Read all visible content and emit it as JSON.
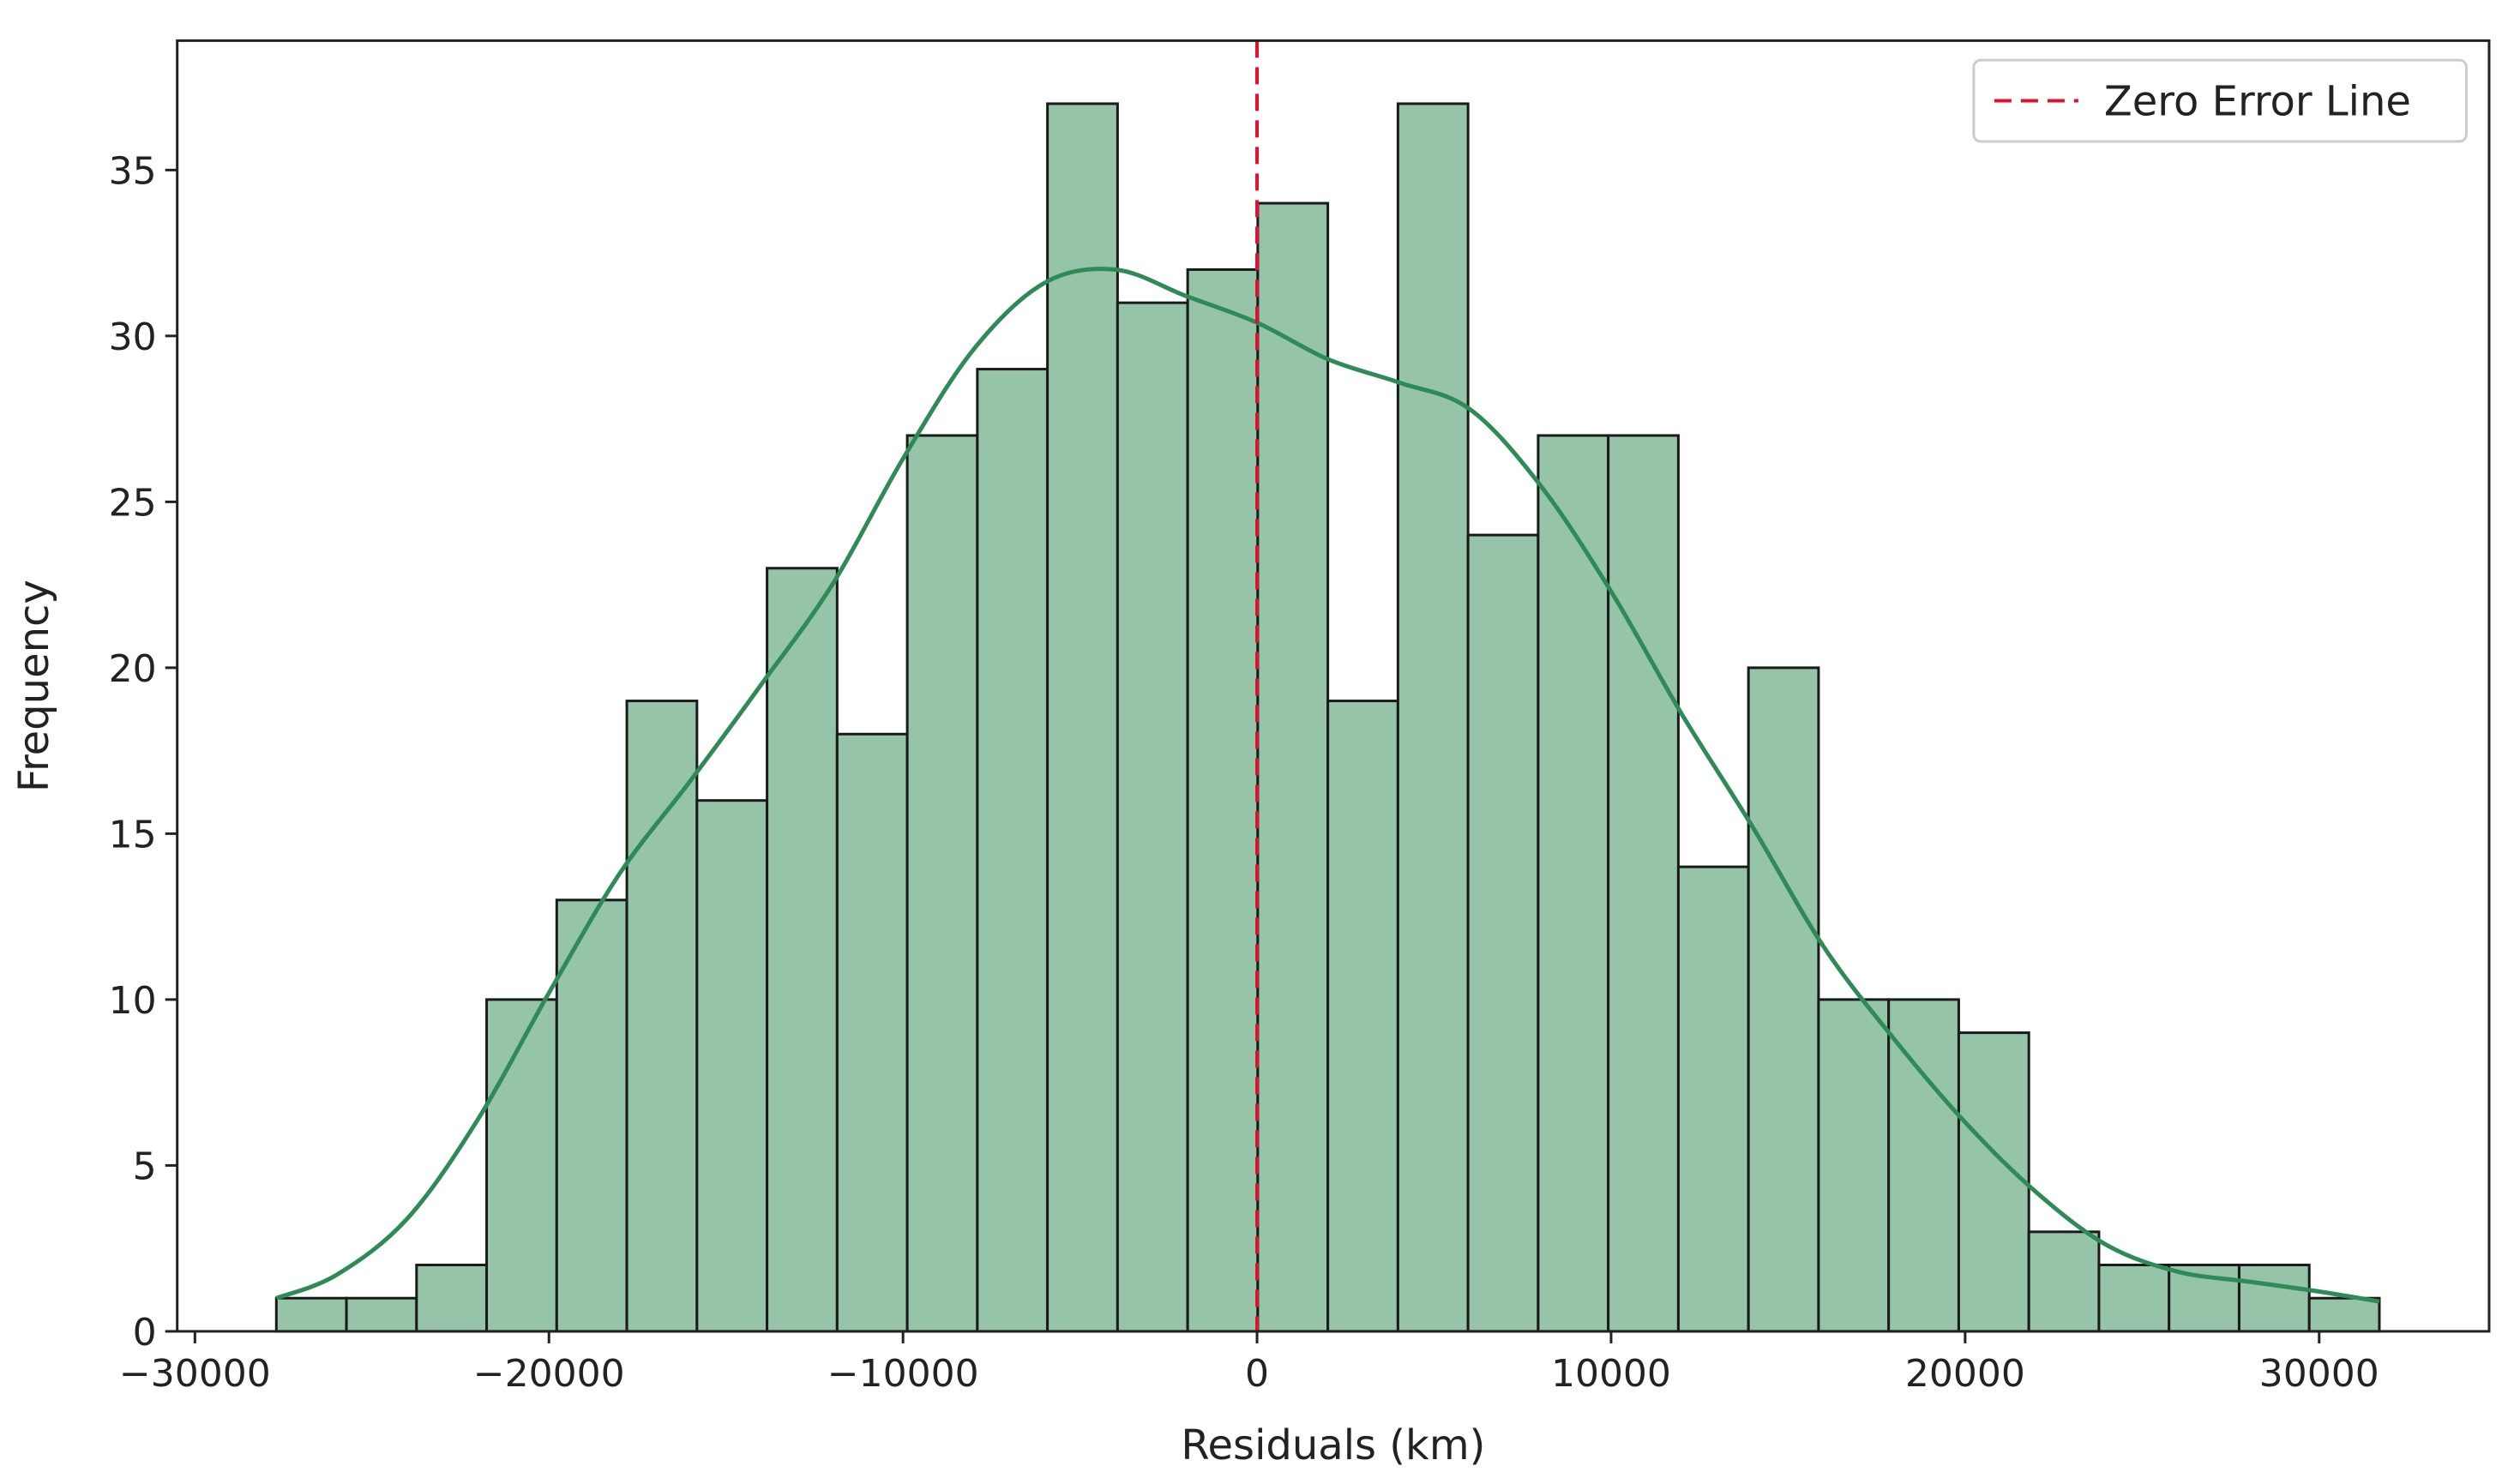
{
  "chart_data": {
    "type": "bar",
    "subtype": "histogram-with-kde",
    "title": "",
    "xlabel": "Residuals (km)",
    "ylabel": "Frequency",
    "xlim": [
      -30500,
      34800
    ],
    "ylim": [
      0,
      38.9
    ],
    "x_ticks": [
      -30000,
      -20000,
      -10000,
      0,
      10000,
      20000,
      30000
    ],
    "x_tick_labels": [
      "−30000",
      "−20000",
      "−10000",
      "0",
      "10000",
      "20000",
      "30000"
    ],
    "y_ticks": [
      0,
      5,
      10,
      15,
      20,
      25,
      30,
      35
    ],
    "y_tick_labels": [
      "0",
      "5",
      "10",
      "15",
      "20",
      "25",
      "30",
      "35"
    ],
    "bin_start": -27700,
    "bin_width": 1980,
    "bin_counts": [
      1,
      1,
      2,
      10,
      13,
      19,
      16,
      23,
      18,
      27,
      29,
      37,
      31,
      32,
      34,
      19,
      37,
      24,
      27,
      27,
      14,
      20,
      10,
      10,
      9,
      3,
      2,
      2,
      2,
      1
    ],
    "kde": {
      "x": [
        -27700,
        -26000,
        -24000,
        -22000,
        -20000,
        -18000,
        -16000,
        -14000,
        -12000,
        -10000,
        -8000,
        -6000,
        -4000,
        -2000,
        0,
        2000,
        4000,
        6000,
        8000,
        10000,
        12000,
        14000,
        16000,
        18000,
        20000,
        22000,
        24000,
        26000,
        28000,
        30000,
        31700
      ],
      "y": [
        1,
        1.7,
        3.4,
        6.4,
        10.2,
        13.8,
        16.6,
        19.5,
        22.5,
        26.3,
        29.6,
        31.6,
        32.0,
        31.2,
        30.4,
        29.3,
        28.6,
        27.8,
        25.5,
        22.3,
        18.6,
        15.2,
        11.6,
        8.8,
        6.3,
        4.2,
        2.6,
        1.8,
        1.5,
        1.2,
        0.9
      ]
    },
    "zero_line_x": 0,
    "legend": {
      "placement": "top-right",
      "entries": [
        "Zero Error Line"
      ]
    },
    "grid": false,
    "colors": {
      "bar_fill": "#95c4a8",
      "bar_edge": "#1a1a1a",
      "kde_line": "#2e8b57",
      "zero_line": "#e0102f",
      "axes": "#222222"
    }
  }
}
